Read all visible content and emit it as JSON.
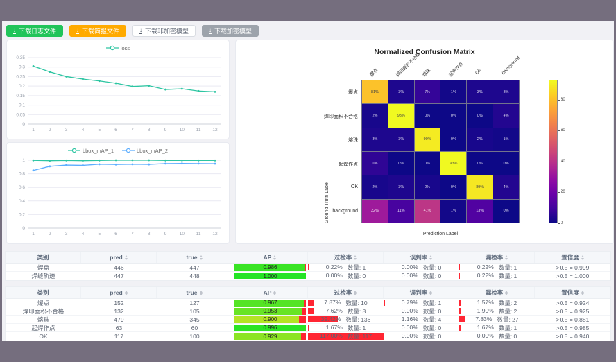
{
  "page": {
    "frame_color": "#756e7e",
    "content_bg": "#f1f1f5"
  },
  "toolbar": {
    "buttons": [
      {
        "label": "下载日志文件",
        "type": "success",
        "color": "#21c45a"
      },
      {
        "label": "下载简报文件",
        "type": "warning",
        "color": "#ffaa00"
      },
      {
        "label": "下载非加密模型",
        "type": "plain",
        "color": "#ffffff"
      },
      {
        "label": "下载加密模型",
        "type": "gray",
        "color": "#9da3ab"
      }
    ],
    "download_icon": "↓"
  },
  "colors": {
    "teal_series": "#2dc5a2",
    "blue_series": "#5cadff",
    "rate_bar_red": "#ff2633",
    "grid_line": "#e9e9f2"
  },
  "chart_data": [
    {
      "id": "loss",
      "type": "line",
      "legend": [
        "loss"
      ],
      "x": [
        1,
        2,
        3,
        4,
        5,
        6,
        7,
        8,
        9,
        10,
        11,
        12
      ],
      "series": [
        {
          "name": "loss",
          "color": "#2dc5a2",
          "values": [
            0.305,
            0.275,
            0.25,
            0.237,
            0.227,
            0.215,
            0.198,
            0.202,
            0.182,
            0.186,
            0.174,
            0.17
          ]
        }
      ],
      "ylim": [
        0,
        0.35
      ],
      "yticks": [
        0,
        0.05,
        0.1,
        0.15,
        0.2,
        0.25,
        0.3,
        0.35
      ],
      "grid": true,
      "legend_position": "top"
    },
    {
      "id": "bbox_map",
      "type": "line",
      "legend": [
        "bbox_mAP_1",
        "bbox_mAP_2"
      ],
      "x": [
        1,
        2,
        3,
        4,
        5,
        6,
        7,
        8,
        9,
        10,
        11,
        12
      ],
      "series": [
        {
          "name": "bbox_mAP_1",
          "color": "#2dc5a2",
          "values": [
            0.998,
            0.993,
            0.997,
            0.993,
            0.997,
            1.0,
            1.0,
            1.0,
            0.997,
            0.997,
            0.997,
            0.997
          ]
        },
        {
          "name": "bbox_mAP_2",
          "color": "#5cadff",
          "values": [
            0.85,
            0.91,
            0.928,
            0.924,
            0.94,
            0.936,
            0.94,
            0.938,
            0.95,
            0.952,
            0.95,
            0.949
          ]
        }
      ],
      "ylim": [
        0,
        1
      ],
      "yticks": [
        0,
        0.2,
        0.4,
        0.6,
        0.8,
        1
      ],
      "grid": true,
      "legend_position": "top"
    },
    {
      "id": "confusion_matrix",
      "type": "heatmap",
      "title": "Normalized Confusion Matrix",
      "xlabel": "Prediction Label",
      "ylabel": "Ground Truth Label",
      "labels": [
        "爆点",
        "焊印面积不合格",
        "熔珠",
        "起焊作点",
        "OK",
        "background"
      ],
      "values_pct": [
        [
          81,
          3,
          7,
          1,
          3,
          3
        ],
        [
          2,
          93,
          0,
          0,
          0,
          4
        ],
        [
          3,
          3,
          90,
          0,
          2,
          1
        ],
        [
          6,
          0,
          0,
          93,
          0,
          0
        ],
        [
          2,
          3,
          2,
          0,
          89,
          4
        ],
        [
          32,
          11,
          41,
          1,
          13,
          0
        ]
      ],
      "vmax": 93,
      "colorbar_ticks": [
        0,
        20,
        40,
        60,
        80
      ],
      "colormap": "plasma",
      "colormap_stops": [
        "#0d0887",
        "#41049d",
        "#6a00a8",
        "#8f0da4",
        "#b12a90",
        "#cc4778",
        "#e16462",
        "#f2844b",
        "#fca636",
        "#fcce25",
        "#f0f921"
      ]
    }
  ],
  "tables": {
    "count_label": "数量:",
    "headers": [
      "类别",
      "pred",
      "true",
      "AP",
      "过检率",
      "误判率",
      "漏检率",
      "置信度"
    ],
    "sortable": [
      false,
      true,
      true,
      true,
      true,
      true,
      true,
      true
    ],
    "groups": [
      {
        "rows": [
          {
            "cls": "焊盘",
            "pred": "446",
            "true": "447",
            "ap": "0.986",
            "rates": [
              {
                "pct": "0.22",
                "count": "1"
              },
              {
                "pct": "0.00",
                "count": "0"
              },
              {
                "pct": "0.22",
                "count": "1"
              }
            ],
            "conf": ">0.5 = 0.999"
          },
          {
            "cls": "焊缝轨迹",
            "pred": "447",
            "true": "448",
            "ap": "1.000",
            "rates": [
              {
                "pct": "0.00",
                "count": "0"
              },
              {
                "pct": "0.00",
                "count": "0"
              },
              {
                "pct": "0.22",
                "count": "1"
              }
            ],
            "conf": ">0.5 = 1.000"
          }
        ]
      },
      {
        "rows": [
          {
            "cls": "爆点",
            "pred": "152",
            "true": "127",
            "ap": "0.967",
            "rates": [
              {
                "pct": "7.87",
                "count": "10"
              },
              {
                "pct": "0.79",
                "count": "1"
              },
              {
                "pct": "1.57",
                "count": "2"
              }
            ],
            "conf": ">0.5 = 0.924"
          },
          {
            "cls": "焊印面积不合格",
            "pred": "132",
            "true": "105",
            "ap": "0.953",
            "rates": [
              {
                "pct": "7.62",
                "count": "8"
              },
              {
                "pct": "0.00",
                "count": "0"
              },
              {
                "pct": "1.90",
                "count": "2"
              }
            ],
            "conf": ">0.5 = 0.925"
          },
          {
            "cls": "熔珠",
            "pred": "479",
            "true": "345",
            "ap": "0.900",
            "rates": [
              {
                "pct": "39.42",
                "count": "136"
              },
              {
                "pct": "1.16",
                "count": "4"
              },
              {
                "pct": "7.83",
                "count": "27"
              }
            ],
            "conf": ">0.5 = 0.881"
          },
          {
            "cls": "起焊作点",
            "pred": "63",
            "true": "60",
            "ap": "0.996",
            "rates": [
              {
                "pct": "1.67",
                "count": "1"
              },
              {
                "pct": "0.00",
                "count": "0"
              },
              {
                "pct": "1.67",
                "count": "1"
              }
            ],
            "conf": ">0.5 = 0.985"
          },
          {
            "cls": "OK",
            "pred": "117",
            "true": "100",
            "ap": "0.929",
            "rates": [
              {
                "pct": "117.00",
                "count": "117"
              },
              {
                "pct": "0.00",
                "count": "0"
              },
              {
                "pct": "0.00",
                "count": "0"
              }
            ],
            "conf": ">0.5 = 0.940"
          }
        ]
      }
    ]
  }
}
